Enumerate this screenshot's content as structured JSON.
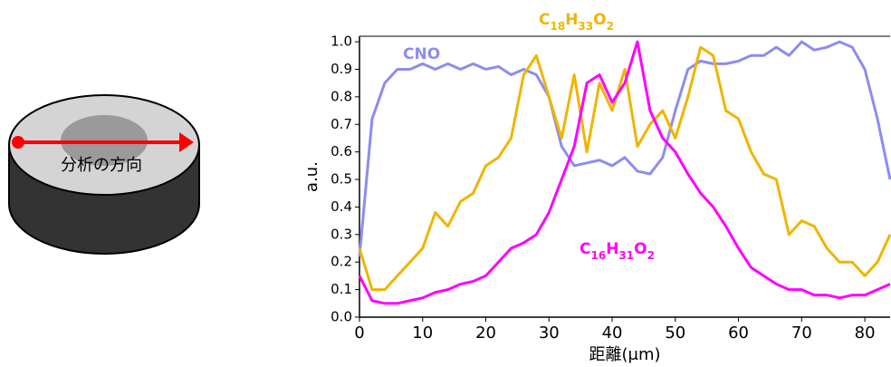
{
  "diagram": {
    "label": "分析の方向"
  },
  "chart_data": {
    "type": "line",
    "x_label": "距離(μm)",
    "y_label": "a.u.",
    "x": [
      0,
      2,
      4,
      6,
      8,
      10,
      12,
      14,
      16,
      18,
      20,
      22,
      24,
      26,
      28,
      30,
      32,
      34,
      36,
      38,
      40,
      42,
      44,
      46,
      48,
      50,
      52,
      54,
      56,
      58,
      60,
      62,
      64,
      66,
      68,
      70,
      72,
      74,
      76,
      78,
      80,
      82,
      84
    ],
    "series": [
      {
        "name": "CNO",
        "color": "#8c8cf0",
        "values": [
          0.22,
          0.72,
          0.85,
          0.9,
          0.9,
          0.92,
          0.9,
          0.92,
          0.9,
          0.92,
          0.9,
          0.91,
          0.88,
          0.9,
          0.88,
          0.8,
          0.62,
          0.55,
          0.56,
          0.57,
          0.55,
          0.58,
          0.53,
          0.52,
          0.58,
          0.75,
          0.9,
          0.93,
          0.92,
          0.92,
          0.93,
          0.95,
          0.95,
          0.98,
          0.95,
          1.0,
          0.97,
          0.98,
          1.0,
          0.98,
          0.9,
          0.72,
          0.5
        ]
      },
      {
        "name": "C18H33O2",
        "color": "#f0b400",
        "values": [
          0.25,
          0.1,
          0.1,
          0.15,
          0.2,
          0.25,
          0.38,
          0.33,
          0.42,
          0.45,
          0.55,
          0.58,
          0.65,
          0.88,
          0.95,
          0.8,
          0.65,
          0.88,
          0.6,
          0.85,
          0.75,
          0.9,
          0.62,
          0.7,
          0.75,
          0.65,
          0.8,
          0.98,
          0.95,
          0.75,
          0.72,
          0.6,
          0.52,
          0.5,
          0.3,
          0.35,
          0.33,
          0.25,
          0.2,
          0.2,
          0.15,
          0.2,
          0.3
        ]
      },
      {
        "name": "C16H31O2",
        "color": "#ff00ff",
        "values": [
          0.15,
          0.06,
          0.05,
          0.05,
          0.06,
          0.07,
          0.09,
          0.1,
          0.12,
          0.13,
          0.15,
          0.2,
          0.25,
          0.27,
          0.3,
          0.38,
          0.5,
          0.62,
          0.85,
          0.88,
          0.78,
          0.85,
          1.0,
          0.75,
          0.65,
          0.6,
          0.52,
          0.45,
          0.4,
          0.33,
          0.25,
          0.18,
          0.15,
          0.12,
          0.1,
          0.1,
          0.08,
          0.08,
          0.07,
          0.08,
          0.08,
          0.1,
          0.12
        ]
      }
    ],
    "xlim": [
      0,
      84
    ],
    "ylim": [
      0,
      1.02
    ],
    "xticks": [
      0,
      10,
      20,
      30,
      40,
      50,
      60,
      70,
      80
    ],
    "yticks": [
      {
        "value": 0,
        "label": "0.0"
      },
      0.1,
      0.2,
      0.3,
      0.4,
      0.5,
      0.6,
      0.7,
      0.8,
      0.9,
      {
        "value": 1,
        "label": "1.0"
      }
    ]
  }
}
